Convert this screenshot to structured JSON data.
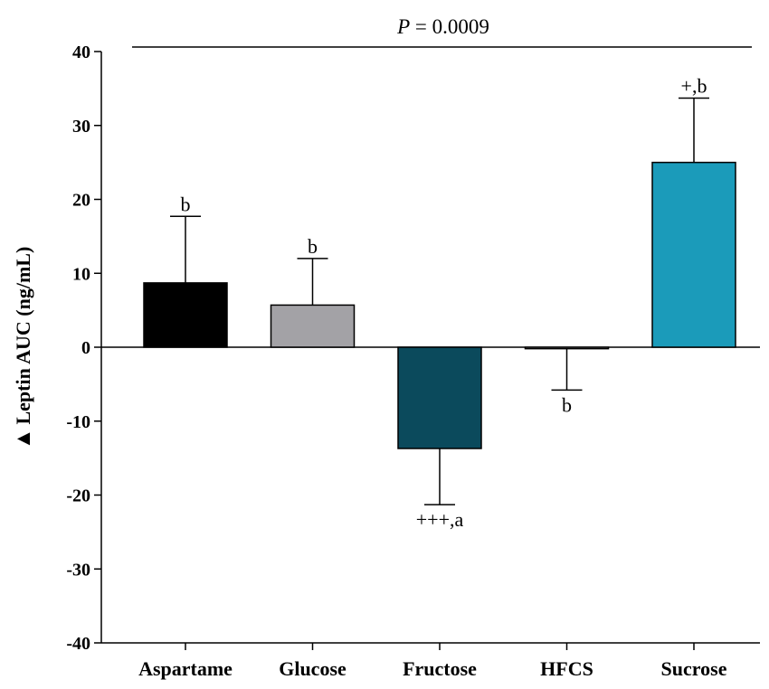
{
  "chart_data": {
    "type": "bar",
    "ylabel": "Leptin AUC (ng/mL)",
    "ylabel_symbol": "▲",
    "ylim": [
      -40,
      40
    ],
    "yticks": [
      "-40",
      "-30",
      "-20",
      "-10",
      "0",
      "10",
      "20",
      "30",
      "40"
    ],
    "categories": [
      "Aspartame",
      "Glucose",
      "Fructose",
      "HFCS",
      "Sucrose"
    ],
    "values": [
      8.7,
      5.7,
      -13.7,
      -0.2,
      25.0
    ],
    "errors": [
      9.0,
      6.3,
      7.6,
      5.6,
      8.7
    ],
    "colors": [
      "#000000",
      "#a3a2a6",
      "#0b4a5c",
      "#ffffff",
      "#1b9bba"
    ],
    "annotations": [
      "b",
      "b",
      "+++,a",
      "b",
      "+,b"
    ],
    "p_value": {
      "label": "P",
      "text": " = 0.0009"
    }
  }
}
